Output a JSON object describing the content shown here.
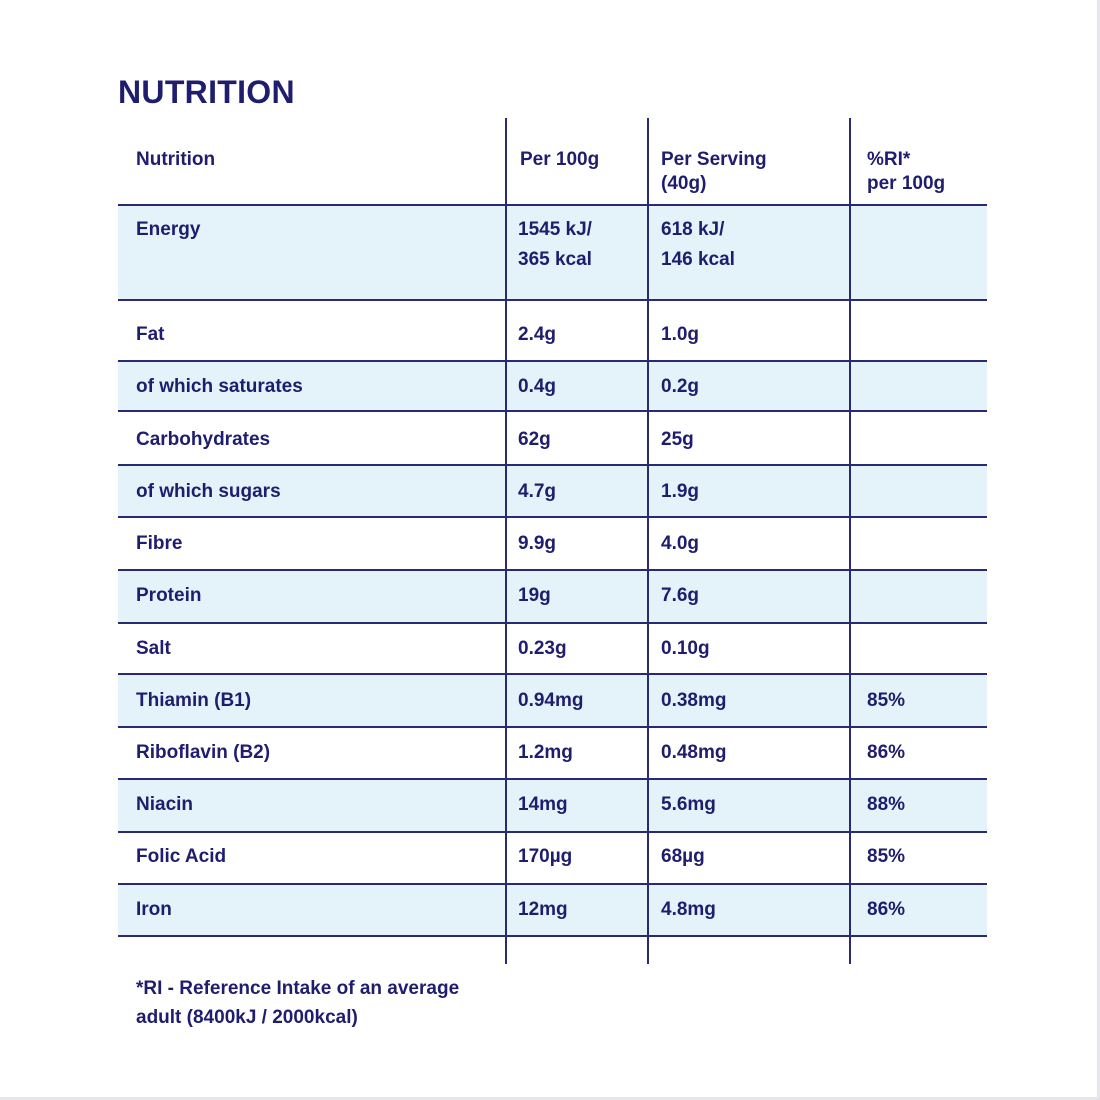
{
  "title": "NUTRITION",
  "headers": {
    "name": "Nutrition",
    "per100": "Per 100g",
    "serving_line1": "Per Serving",
    "serving_line2": "(40g)",
    "ri_line1": "%RI*",
    "ri_line2": "per 100g"
  },
  "energy": {
    "name": "Energy",
    "per100_line1": "1545 kJ/",
    "per100_line2": "365 kcal",
    "serving_line1": "618 kJ/",
    "serving_line2": "146 kcal",
    "ri": ""
  },
  "rows": [
    {
      "name": "Fat",
      "per100": "2.4g",
      "serving": "1.0g",
      "ri": ""
    },
    {
      "name": "of which saturates",
      "per100": "0.4g",
      "serving": "0.2g",
      "ri": ""
    },
    {
      "name": "Carbohydrates",
      "per100": "62g",
      "serving": "25g",
      "ri": ""
    },
    {
      "name": "of which sugars",
      "per100": "4.7g",
      "serving": "1.9g",
      "ri": ""
    },
    {
      "name": "Fibre",
      "per100": "9.9g",
      "serving": "4.0g",
      "ri": ""
    },
    {
      "name": "Protein",
      "per100": "19g",
      "serving": "7.6g",
      "ri": ""
    },
    {
      "name": "Salt",
      "per100": "0.23g",
      "serving": "0.10g",
      "ri": ""
    },
    {
      "name": "Thiamin (B1)",
      "per100": "0.94mg",
      "serving": "0.38mg",
      "ri": "85%"
    },
    {
      "name": "Riboflavin (B2)",
      "per100": "1.2mg",
      "serving": "0.48mg",
      "ri": "86%"
    },
    {
      "name": "Niacin",
      "per100": "14mg",
      "serving": "5.6mg",
      "ri": "88%"
    },
    {
      "name": "Folic Acid",
      "per100": "170µg",
      "serving": "68µg",
      "ri": "85%"
    },
    {
      "name": "Iron",
      "per100": "12mg",
      "serving": "4.8mg",
      "ri": "86%"
    }
  ],
  "footnote": {
    "line1": "*RI - Reference Intake of an average",
    "line2": "adult (8400kJ / 2000kcal)"
  },
  "colors": {
    "text": "#1f1d6e",
    "rule": "#2a2a74",
    "shade": "#e3f3f9"
  }
}
